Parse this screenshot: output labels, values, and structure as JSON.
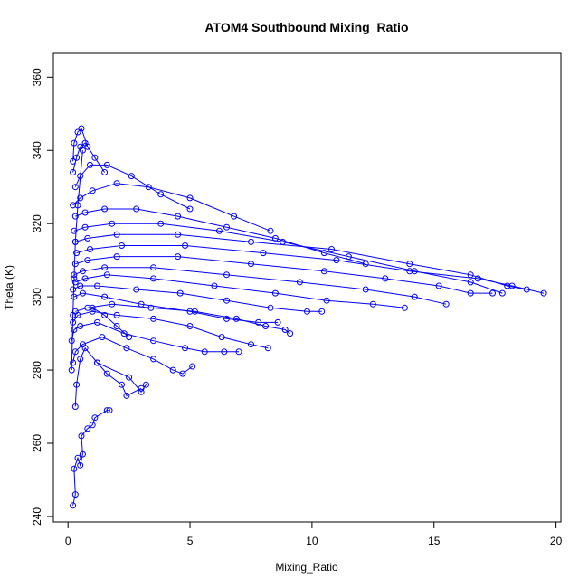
{
  "chart_data": {
    "type": "line",
    "title": "ATOM4 Southbound Mixing_Ratio",
    "xlabel": "Mixing_Ratio",
    "ylabel": "Theta (K)",
    "xlim": [
      -0.6,
      20.2
    ],
    "ylim": [
      238.5,
      366.5
    ],
    "x_ticks": [
      0,
      5,
      10,
      15,
      20
    ],
    "y_ticks": [
      240,
      260,
      280,
      300,
      320,
      340,
      360
    ],
    "grid": false,
    "legend": "none",
    "color": "#0000ff",
    "marker": "open-circle",
    "series": [
      {
        "x": [
          0.2,
          0.3,
          0.25,
          0.4,
          0.5,
          0.6,
          0.55,
          0.8,
          1.0,
          1.1,
          1.6,
          1.7
        ],
        "y": [
          243,
          246,
          253,
          256,
          254,
          257,
          262,
          264,
          265,
          267,
          269,
          269
        ]
      },
      {
        "x": [
          0.3,
          0.35,
          0.5,
          0.7,
          1.2,
          2.5,
          3.0,
          3.2
        ],
        "y": [
          270,
          276,
          283,
          286,
          282,
          278,
          274,
          276
        ]
      },
      {
        "x": [
          0.2,
          0.3,
          0.6,
          1.4,
          2.4,
          3.5,
          4.3,
          4.7,
          5.1
        ],
        "y": [
          282,
          285,
          287,
          289,
          286,
          283,
          280,
          279,
          281
        ]
      },
      {
        "x": [
          0.15,
          0.25,
          0.5,
          1.2,
          2.3,
          3.5,
          4.8,
          5.6,
          6.4,
          7.0
        ],
        "y": [
          288,
          291,
          292,
          293,
          290,
          288,
          286,
          285,
          285,
          285
        ]
      },
      {
        "x": [
          0.2,
          0.4,
          1.0,
          2.0,
          3.5,
          5.0,
          6.3,
          7.5,
          8.2
        ],
        "y": [
          293,
          295,
          296,
          295,
          294,
          292,
          289,
          287,
          286
        ]
      },
      {
        "x": [
          0.3,
          0.8,
          1.8,
          3.4,
          5.2,
          6.9,
          8.1,
          8.9,
          9.1
        ],
        "y": [
          296,
          297,
          298,
          297,
          296,
          294,
          292,
          291,
          290
        ]
      },
      {
        "x": [
          0.25,
          0.6,
          1.5,
          3.0,
          5.0,
          6.5,
          7.8,
          8.6
        ],
        "y": [
          300,
          301,
          300,
          298,
          296,
          294,
          293,
          293
        ]
      },
      {
        "x": [
          0.2,
          0.5,
          1.2,
          2.8,
          4.6,
          6.5,
          8.3,
          9.8,
          10.4
        ],
        "y": [
          302,
          303,
          303,
          302,
          301,
          299,
          297,
          296,
          296
        ]
      },
      {
        "x": [
          0.3,
          0.7,
          1.6,
          3.5,
          6.0,
          8.5,
          10.6,
          12.5,
          13.8
        ],
        "y": [
          304,
          305,
          306,
          305,
          303,
          301,
          299,
          298,
          297
        ]
      },
      {
        "x": [
          0.25,
          0.6,
          1.5,
          3.5,
          6.5,
          9.5,
          12.2,
          14.2,
          15.5
        ],
        "y": [
          306,
          307,
          308,
          308,
          306,
          304,
          302,
          300,
          298
        ]
      },
      {
        "x": [
          0.3,
          0.8,
          2.0,
          4.5,
          7.5,
          10.5,
          13.0,
          15.2,
          16.5,
          17.4
        ],
        "y": [
          309,
          310,
          311,
          311,
          309,
          307,
          305,
          303,
          301,
          301
        ]
      },
      {
        "x": [
          0.35,
          0.9,
          2.2,
          4.8,
          8.0,
          11.0,
          14.0,
          16.8,
          18.2,
          19.5
        ],
        "y": [
          312,
          313,
          314,
          314,
          312,
          310,
          307,
          305,
          303,
          301
        ]
      },
      {
        "x": [
          0.3,
          0.8,
          2.0,
          4.5,
          7.5,
          10.8,
          14.0,
          16.5,
          18.0,
          18.8
        ],
        "y": [
          315,
          316,
          317,
          317,
          315,
          313,
          309,
          306,
          303,
          302
        ]
      },
      {
        "x": [
          0.25,
          0.7,
          1.8,
          3.8,
          6.2,
          8.8,
          11.5,
          14.2,
          16.5,
          17.8
        ],
        "y": [
          318,
          319,
          320,
          320,
          318,
          315,
          311,
          307,
          304,
          301
        ]
      },
      {
        "x": [
          0.3,
          0.7,
          1.5,
          2.8,
          4.5,
          6.5,
          8.5,
          10.5,
          12.2
        ],
        "y": [
          322,
          323,
          324,
          324,
          322,
          319,
          316,
          312,
          309
        ]
      },
      {
        "x": [
          0.2,
          0.5,
          1.0,
          2.0,
          3.3,
          5.0,
          6.8,
          8.3
        ],
        "y": [
          325,
          327,
          329,
          331,
          330,
          327,
          322,
          318
        ]
      },
      {
        "x": [
          0.3,
          0.5,
          0.9,
          1.6,
          2.6,
          3.8,
          5.0
        ],
        "y": [
          330,
          333,
          336,
          336,
          333,
          328,
          324
        ]
      },
      {
        "x": [
          0.2,
          0.35,
          0.5,
          0.7,
          1.1,
          1.5
        ],
        "y": [
          334,
          338,
          341,
          342,
          338,
          334
        ]
      },
      {
        "x": [
          0.2,
          0.25,
          0.4,
          0.55,
          0.8
        ],
        "y": [
          337,
          342,
          345,
          346,
          341
        ]
      },
      {
        "x": [
          0.15,
          0.2,
          0.25,
          0.3,
          0.4,
          0.6
        ],
        "y": [
          280,
          295,
          305,
          315,
          325,
          340
        ]
      },
      {
        "x": [
          1.2,
          1.6,
          2.2,
          2.4,
          3.0
        ],
        "y": [
          282,
          279,
          276,
          273,
          275
        ]
      },
      {
        "x": [
          1.0,
          1.5,
          2.0,
          2.5
        ],
        "y": [
          297,
          295,
          292,
          289
        ]
      }
    ]
  }
}
